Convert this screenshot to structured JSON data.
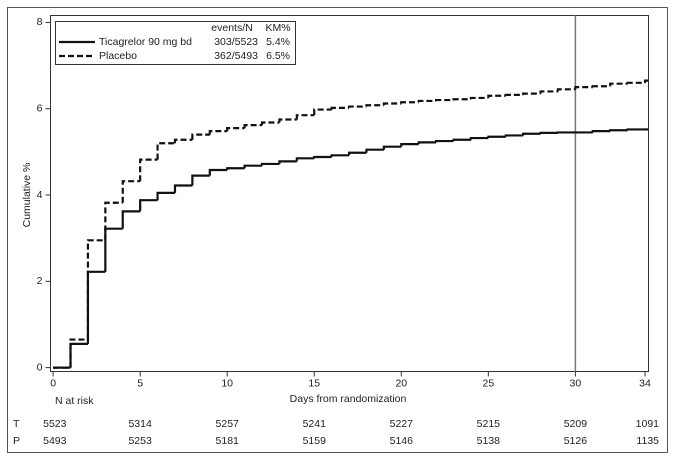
{
  "chart_data": {
    "type": "step",
    "x_label": "Days from randomization",
    "y_label": "Cumulative %",
    "x": [
      0,
      1,
      2,
      3,
      4,
      5,
      6,
      7,
      8,
      9,
      10,
      11,
      12,
      13,
      14,
      15,
      16,
      17,
      18,
      19,
      20,
      21,
      22,
      23,
      24,
      25,
      26,
      27,
      28,
      29,
      30,
      31,
      32,
      33,
      34
    ],
    "series": [
      {
        "name": "Ticagrelor 90 mg bd",
        "color": "#111111",
        "dash": false,
        "events": "303/5523",
        "km": "5.4%",
        "values": [
          0,
          0.55,
          2.22,
          3.22,
          3.62,
          3.88,
          4.05,
          4.22,
          4.45,
          4.58,
          4.62,
          4.68,
          4.72,
          4.78,
          4.85,
          4.88,
          4.92,
          4.98,
          5.05,
          5.12,
          5.18,
          5.22,
          5.25,
          5.28,
          5.32,
          5.35,
          5.38,
          5.42,
          5.44,
          5.45,
          5.45,
          5.48,
          5.5,
          5.52,
          5.52
        ]
      },
      {
        "name": "Placebo",
        "color": "#111111",
        "dash": true,
        "events": "362/5493",
        "km": "6.5%",
        "values": [
          0,
          0.65,
          2.95,
          3.82,
          4.32,
          4.82,
          5.2,
          5.28,
          5.4,
          5.48,
          5.55,
          5.62,
          5.68,
          5.75,
          5.85,
          5.98,
          6.02,
          6.05,
          6.08,
          6.12,
          6.15,
          6.18,
          6.2,
          6.22,
          6.25,
          6.3,
          6.32,
          6.35,
          6.4,
          6.45,
          6.5,
          6.52,
          6.58,
          6.6,
          6.65
        ]
      }
    ],
    "legend_header": [
      "events/N",
      "KM%"
    ],
    "xlim": [
      -0.15,
      34.2
    ],
    "xticks": [
      0,
      5,
      10,
      15,
      20,
      25,
      30,
      34
    ],
    "ylim": [
      -0.09,
      8.16
    ],
    "yticks": [
      0,
      2,
      4,
      6,
      8
    ],
    "vlines": [
      30
    ],
    "risk_table": {
      "title": "N at risk",
      "rows": [
        {
          "label": "T",
          "values": [
            "5523",
            "5314",
            "5257",
            "5241",
            "5227",
            "5215",
            "5209",
            "1091"
          ]
        },
        {
          "label": "P",
          "values": [
            "5493",
            "5253",
            "5181",
            "5159",
            "5146",
            "5138",
            "5126",
            "1135"
          ]
        }
      ]
    }
  }
}
